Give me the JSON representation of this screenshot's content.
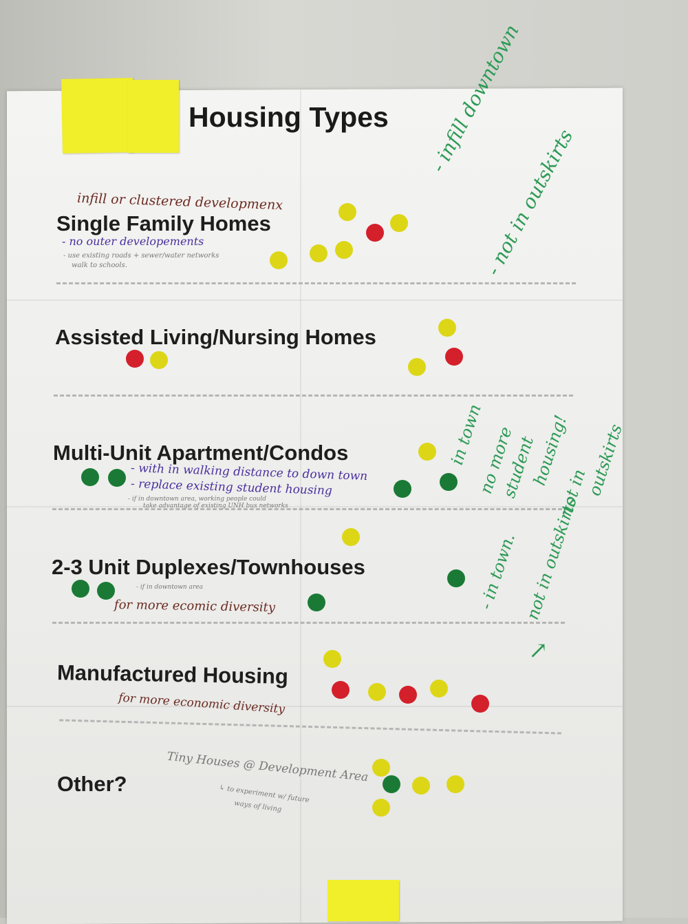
{
  "poster": {
    "title": "Housing Types",
    "categories": [
      "Single Family Homes",
      "Assisted Living/Nursing Homes",
      "Multi-Unit Apartment/Condos",
      "2-3 Unit Duplexes/Townhouses",
      "Manufactured Housing",
      "Other?"
    ]
  },
  "notes": {
    "sfh_top": "infill or clustered developmenx",
    "sfh_1": "- no outer developements",
    "sfh_2": "- use existing roads + sewer/water networks",
    "sfh_3": "walk to schools.",
    "sfh_green_1": "- infill downtown",
    "sfh_green_2": "- not in outskirts",
    "mu_1": "- with in walking distance to down town",
    "mu_2": "- replace existing student housing",
    "mu_3": "- if in downtown area, working people could",
    "mu_4": "take advantage of existing UNH bus networks",
    "mu_green_1": "in town",
    "mu_green_2": "no more",
    "mu_green_3": "student",
    "mu_green_4": "housing!",
    "mu_green_5": "not in",
    "mu_green_6": "outskirts",
    "dup_1": "- if in downtown area",
    "dup_2": "for more ecomic diversity",
    "dup_green_1": "- in town.",
    "dup_green_2": "not in outskirts",
    "dup_green_arrow": "↗",
    "mh_1": "for more economic diversity",
    "other_1": "Tiny Houses @ Development Area",
    "other_2": "↳ to experiment w/ future",
    "other_3": "ways of living"
  },
  "dot_colors": {
    "yellow": "#dcd617",
    "red": "#d3202b",
    "green": "#1a7a35"
  },
  "sticky_color": "#f1ee2a"
}
